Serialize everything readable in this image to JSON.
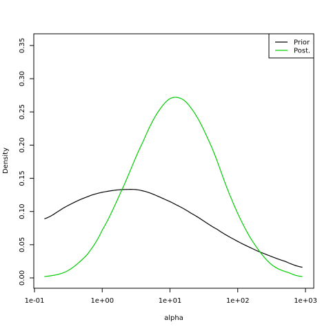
{
  "chart_data": {
    "type": "line",
    "title": "",
    "xlabel": "alpha",
    "ylabel": "Density",
    "x_scale": "log10",
    "xlim": [
      0.1,
      1000
    ],
    "ylim": [
      0,
      0.35
    ],
    "x_ticks": [
      0.1,
      1,
      10,
      100,
      1000
    ],
    "x_tick_labels": [
      "1e-01",
      "1e+00",
      "1e+01",
      "1e+02",
      "1e+03"
    ],
    "y_ticks": [
      0,
      0.05,
      0.1,
      0.15,
      0.2,
      0.25,
      0.3,
      0.35
    ],
    "y_tick_labels": [
      "0.00",
      "0.05",
      "0.10",
      "0.15",
      "0.20",
      "0.25",
      "0.30",
      "0.35"
    ],
    "grid": false,
    "legend_position": "top-right",
    "series": [
      {
        "name": "Prior",
        "color": "#000000",
        "x": [
          0.14,
          0.3,
          0.6,
          1.0,
          2.0,
          4.0,
          10.0,
          20.0,
          50.0,
          100.0,
          200.0,
          500.0,
          900.0
        ],
        "y": [
          0.089,
          0.108,
          0.122,
          0.129,
          0.133,
          0.131,
          0.115,
          0.098,
          0.073,
          0.055,
          0.04,
          0.025,
          0.016
        ]
      },
      {
        "name": "Post.",
        "color": "#00cc00",
        "x": [
          0.14,
          0.3,
          0.6,
          1.0,
          2.0,
          4.0,
          7.0,
          11.5,
          20.0,
          40.0,
          80.0,
          150.0,
          300.0,
          600.0,
          900.0
        ],
        "y": [
          0.002,
          0.01,
          0.035,
          0.072,
          0.135,
          0.205,
          0.253,
          0.272,
          0.257,
          0.2,
          0.12,
          0.062,
          0.022,
          0.007,
          0.002
        ]
      }
    ]
  }
}
